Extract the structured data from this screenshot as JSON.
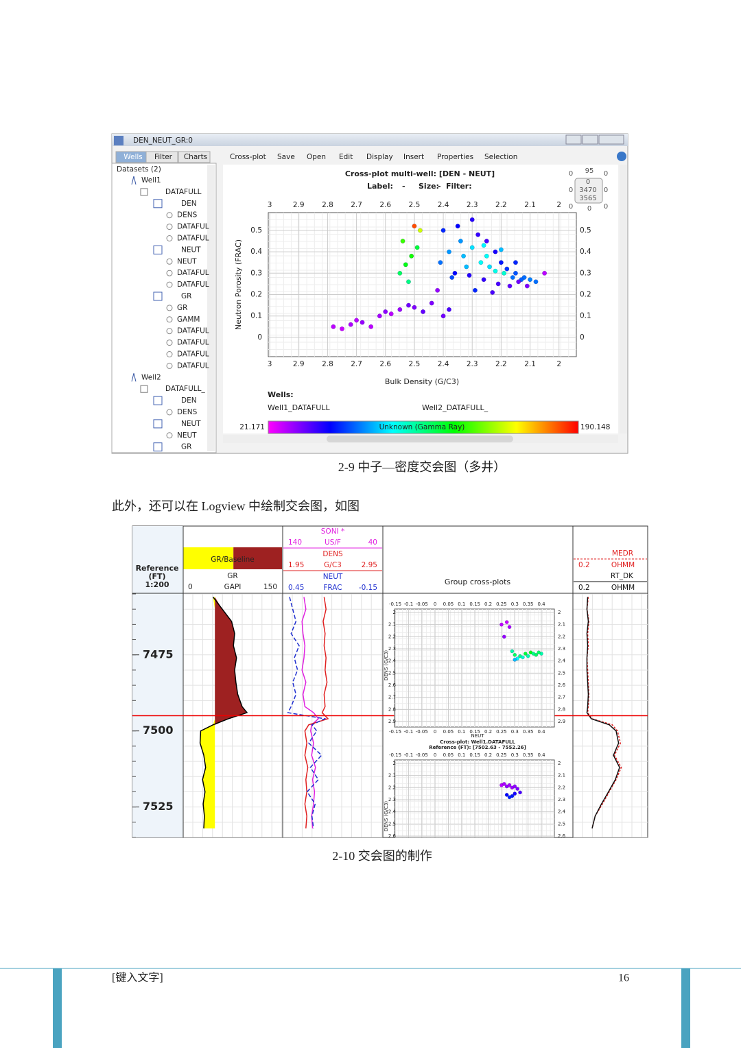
{
  "window": {
    "title": "DEN_NEUT_GR:0",
    "tabs": [
      "Wells",
      "Filter",
      "Charts"
    ],
    "menu": [
      "Cross-plot",
      "Save",
      "Open",
      "Edit",
      "Display",
      "Insert",
      "Properties",
      "Selection"
    ]
  },
  "tree": {
    "header": "Datasets (2)",
    "items": [
      "Well1",
      "DATAFULL",
      "DEN",
      "DENS",
      "DATAFUL",
      "DATAFUL",
      "NEUT",
      "NEUT",
      "DATAFUL",
      "DATAFUL",
      "GR",
      "GR",
      "GAMM",
      "DATAFUL",
      "DATAFUL",
      "DATAFUL",
      "DATAFUL",
      "Well2",
      "DATAFULL_",
      "DEN",
      "DENS",
      "NEUT",
      "NEUT",
      "GR"
    ]
  },
  "zoom_box": [
    "0",
    "95",
    "0",
    "0",
    "0",
    "3470",
    "0",
    "3565",
    "0",
    "0",
    "0"
  ],
  "chart_data": [
    {
      "type": "scatter",
      "title": "Cross-plot multi-well: [DEN - NEUT]",
      "options": [
        "Label:",
        "-",
        "Size:",
        "-",
        "Filter:"
      ],
      "x_label": "Bulk Density (G/C3)",
      "y_label": "Neutron Porosity (FRAC)",
      "xlim": [
        3.005,
        1.94
      ],
      "ylim": [
        -0.09,
        0.583
      ],
      "xticks": [
        3,
        2.9,
        2.8,
        2.7,
        2.6,
        2.5,
        2.4,
        2.3,
        2.2,
        2.1,
        2
      ],
      "yticks": [
        0,
        0.1,
        0.2,
        0.3,
        0.4,
        0.5
      ],
      "grid": true,
      "legend_title": "Wells:",
      "series": [
        {
          "name": "Well1_DATAFULL",
          "x": [
            2.4,
            2.35,
            2.3,
            2.28,
            2.25,
            2.22,
            2.2,
            2.18,
            2.15,
            2.12,
            2.1,
            2.08,
            2.05,
            2.38,
            2.33,
            2.27,
            2.24,
            2.19,
            2.16,
            2.13,
            2.36,
            2.31,
            2.26,
            2.21,
            2.17,
            2.14,
            2.42,
            2.29,
            2.23,
            2.11,
            2.34,
            2.3,
            2.25,
            2.2,
            2.41,
            2.37,
            2.32,
            2.15,
            2.26,
            2.22
          ],
          "y": [
            0.5,
            0.52,
            0.55,
            0.48,
            0.45,
            0.4,
            0.35,
            0.32,
            0.3,
            0.28,
            0.27,
            0.26,
            0.3,
            0.4,
            0.38,
            0.35,
            0.33,
            0.3,
            0.28,
            0.27,
            0.3,
            0.29,
            0.27,
            0.25,
            0.24,
            0.26,
            0.22,
            0.22,
            0.21,
            0.24,
            0.45,
            0.42,
            0.38,
            0.41,
            0.35,
            0.28,
            0.33,
            0.35,
            0.43,
            0.31
          ],
          "gr": [
            60,
            55,
            50,
            48,
            45,
            52,
            58,
            62,
            66,
            70,
            72,
            70,
            30,
            75,
            80,
            90,
            85,
            95,
            70,
            68,
            55,
            50,
            48,
            45,
            42,
            40,
            35,
            60,
            45,
            38,
            75,
            85,
            90,
            80,
            70,
            65,
            80,
            60,
            88,
            92
          ]
        },
        {
          "name": "Well2_DATAFULL_",
          "x": [
            2.78,
            2.75,
            2.72,
            2.7,
            2.68,
            2.65,
            2.62,
            2.6,
            2.58,
            2.55,
            2.52,
            2.5,
            2.47,
            2.44,
            2.4,
            2.38,
            2.55,
            2.53,
            2.51,
            2.49,
            2.52,
            2.5,
            2.48,
            2.54
          ],
          "y": [
            0.05,
            0.04,
            0.06,
            0.08,
            0.07,
            0.05,
            0.1,
            0.12,
            0.11,
            0.13,
            0.15,
            0.14,
            0.12,
            0.16,
            0.1,
            0.13,
            0.3,
            0.34,
            0.38,
            0.42,
            0.26,
            0.52,
            0.5,
            0.45
          ],
          "gr": [
            30,
            28,
            32,
            30,
            35,
            30,
            33,
            36,
            30,
            34,
            40,
            38,
            42,
            38,
            40,
            45,
            110,
            120,
            125,
            115,
            105,
            180,
            150,
            130
          ]
        }
      ],
      "colorbar": {
        "min": 21.171,
        "max": 190.148,
        "label": "Unknown (Gamma Ray)"
      }
    },
    {
      "type": "well-log",
      "depth_label": [
        "Reference",
        "(FT)",
        "1:200"
      ],
      "depth_lim": [
        7455,
        7535
      ],
      "depth_ticks": [
        7475,
        7500,
        7525
      ],
      "cursor_depth": 7495,
      "depths": [
        7456,
        7460,
        7464,
        7468,
        7472,
        7476,
        7480,
        7484,
        7488,
        7492,
        7494,
        7496,
        7498,
        7500,
        7504,
        7508,
        7512,
        7516,
        7520,
        7524,
        7528,
        7532
      ],
      "gr": {
        "fill_label": "GR/Baseline",
        "name": "GR",
        "unit": "GAPI",
        "lim": [
          0,
          150
        ],
        "baseline": 48,
        "values": [
          45,
          60,
          75,
          80,
          78,
          83,
          80,
          82,
          85,
          92,
          100,
          70,
          45,
          25,
          24,
          30,
          33,
          28,
          32,
          29,
          31,
          30
        ]
      },
      "curves": [
        {
          "name": "SONI *",
          "unit": "US/F",
          "lim": [
            140,
            40
          ],
          "color": "#e020e0",
          "dashed": false,
          "values": [
            120,
            118,
            122,
            121,
            119,
            120,
            122,
            118,
            121,
            119,
            110,
            105,
            112,
            113,
            110,
            112,
            108,
            111,
            109,
            110,
            112,
            111
          ]
        },
        {
          "name": "DENS",
          "unit": "G/C3",
          "lim": [
            1.95,
            2.95
          ],
          "color": "#e02020",
          "dashed": false,
          "values": [
            2.36,
            2.38,
            2.35,
            2.37,
            2.36,
            2.38,
            2.37,
            2.39,
            2.36,
            2.37,
            2.34,
            2.4,
            2.2,
            2.16,
            2.18,
            2.16,
            2.19,
            2.17,
            2.18,
            2.16,
            2.18,
            2.17
          ]
        },
        {
          "name": "NEUT",
          "unit": "FRAC",
          "lim": [
            0.45,
            -0.15
          ],
          "color": "#2030d0",
          "dashed": true,
          "values": [
            0.42,
            0.4,
            0.38,
            0.41,
            0.36,
            0.39,
            0.37,
            0.4,
            0.38,
            0.41,
            0.43,
            0.2,
            0.28,
            0.25,
            0.3,
            0.22,
            0.29,
            0.24,
            0.31,
            0.26,
            0.28,
            0.27
          ]
        }
      ],
      "crossplot_header": "Group cross-plots",
      "resistivity": {
        "unit": "OHMM",
        "lim": [
          0.2,
          2000
        ],
        "log": true,
        "curves": [
          {
            "name": "MEDR",
            "color": "#e02020",
            "dashed": true,
            "values": [
              1.2,
              1.0,
              1.3,
              1.1,
              1.2,
              1.0,
              1.1,
              1.2,
              1.3,
              1.2,
              1.1,
              2,
              30,
              60,
              90,
              40,
              100,
              50,
              20,
              8,
              3,
              2
            ]
          },
          {
            "name": "RT_DK",
            "color": "#111111",
            "dashed": false,
            "values": [
              1.1,
              1.0,
              1.2,
              1.0,
              1.1,
              1.0,
              1.0,
              1.1,
              1.2,
              1.1,
              1.0,
              1.8,
              20,
              50,
              70,
              35,
              80,
              45,
              18,
              7,
              3,
              2
            ]
          }
        ]
      }
    },
    {
      "type": "scatter",
      "x_label": "NEUT",
      "y_label": "DENS (G/C3)",
      "xlim": [
        -0.1526,
        0.449
      ],
      "ylim": [
        2.945,
        1.972
      ],
      "xticks": [
        -0.15,
        -0.1,
        -0.05,
        0,
        0.05,
        0.1,
        0.15,
        0.2,
        0.25,
        0.3,
        0.35,
        0.4
      ],
      "yticks": [
        2,
        2.1,
        2.2,
        2.3,
        2.4,
        2.5,
        2.6,
        2.7,
        2.8,
        2.9
      ],
      "grid": true,
      "series": [
        {
          "x": [
            0.25,
            0.27,
            0.28,
            0.26,
            0.29,
            0.3,
            0.32,
            0.34,
            0.36,
            0.38,
            0.4,
            0.31,
            0.33,
            0.35,
            0.37,
            0.39,
            0.3
          ],
          "y": [
            2.1,
            2.08,
            2.12,
            2.2,
            2.32,
            2.35,
            2.36,
            2.34,
            2.33,
            2.35,
            2.34,
            2.38,
            2.37,
            2.36,
            2.34,
            2.33,
            2.39
          ],
          "gr": [
            30,
            28,
            32,
            35,
            100,
            110,
            105,
            115,
            120,
            110,
            100,
            90,
            95,
            100,
            105,
            110,
            80
          ]
        }
      ]
    },
    {
      "type": "scatter",
      "title": "Cross-plot: Well1.DATAFULL",
      "subtitle": "Reference (FT): [7502.63 - 7552.26]",
      "y_label": "DENS (G/C3)",
      "xlim": [
        -0.1526,
        0.449
      ],
      "ylim": [
        2.945,
        1.972
      ],
      "xticks": [
        -0.15,
        -0.1,
        -0.05,
        0,
        0.05,
        0.1,
        0.15,
        0.2,
        0.25,
        0.3,
        0.35,
        0.4
      ],
      "yticks": [
        2,
        2.1,
        2.2,
        2.3,
        2.4,
        2.5,
        2.6
      ],
      "grid": true,
      "series": [
        {
          "x": [
            0.25,
            0.26,
            0.27,
            0.28,
            0.29,
            0.3,
            0.31,
            0.27,
            0.28,
            0.29,
            0.3,
            0.32
          ],
          "y": [
            2.18,
            2.17,
            2.19,
            2.18,
            2.2,
            2.19,
            2.21,
            2.26,
            2.28,
            2.27,
            2.25,
            2.24
          ],
          "gr": [
            30,
            32,
            35,
            33,
            34,
            36,
            38,
            55,
            60,
            58,
            52,
            45
          ]
        }
      ]
    }
  ],
  "document": {
    "caption_1": "2-9 中子—密度交会图（多井）",
    "paragraph": "此外，还可以在 Logview 中绘制交会图，如图",
    "caption_2": "2-10 交会图的制作"
  },
  "footer": {
    "left": "[键入文字]",
    "page": "16"
  }
}
